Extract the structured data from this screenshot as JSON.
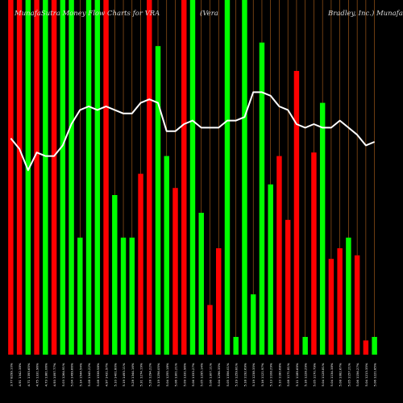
{
  "title": {
    "left": "MunafaSutra  Money Flow  Charts for VRA",
    "right": "(Vera",
    "far_right": "Bradley,  Inc.) MunafaSutra"
  },
  "colors": {
    "background": "#000000",
    "up": "#00ff00",
    "down": "#ff0000",
    "grid": "#b5651d",
    "line": "#ffffff",
    "label": "#ffffff"
  },
  "chart_data": {
    "type": "bar",
    "ylim": [
      0,
      100
    ],
    "categories": [
      "3.77  8299.10%",
      "4.91  1342.38%",
      "4.71  1393.65%",
      "4.75  1331.96%",
      "4.73  1381.06%",
      "4.93  1097.77%",
      "5.03  1264.91%",
      "5.04  1499.66%",
      "5.14  1544.54%",
      "5.08  1345.22%",
      "5.08  1538.58%",
      "4.97  1431.97%",
      "5.10  1401.80%",
      "5.19  1493.11%",
      "5.28  1344.16%",
      "5.31  1274.19%",
      "5.28  1294.22%",
      "5.19  1256.05%",
      "5.04  1255.18%",
      "5.06  1301.21%",
      "5.09  1331.96%",
      "5.06  1333.27%",
      "5.05  1295.14%",
      "5.06  1307.11%",
      "5.04  1296.35%",
      "5.05  1356.01%",
      "5.19  1259.81%",
      "5.18  1192.69%",
      "5.19  1238.35%",
      "5.16  1121.97%",
      "5.13  1108.29%",
      "5.10  1180.68%",
      "5.08  1171.81%",
      "5.11  1189.69%",
      "5.16  1228.29%",
      "5.05  1170.79%",
      "5.04  1128.81%",
      "5.04  1134.38%",
      "5.08  1082.67%",
      "5.05  1157.21%",
      "5.06  1156.27%",
      "5.04  1213.35%",
      "5.06  1221.85%"
    ],
    "values": [
      100,
      100,
      100,
      100,
      100,
      100,
      100,
      100,
      33,
      100,
      100,
      100,
      45,
      33,
      33,
      51,
      100,
      87,
      56,
      47,
      100,
      100,
      40,
      14,
      30,
      100,
      5,
      100,
      17,
      88,
      48,
      56,
      38,
      80,
      5,
      57,
      71,
      27,
      30,
      33,
      28,
      4,
      5
    ],
    "directions": [
      "down",
      "down",
      "up",
      "down",
      "up",
      "down",
      "up",
      "up",
      "up",
      "up",
      "up",
      "down",
      "up",
      "up",
      "up",
      "down",
      "down",
      "up",
      "up",
      "down",
      "down",
      "up",
      "up",
      "down",
      "down",
      "up",
      "up",
      "up",
      "up",
      "up",
      "up",
      "down",
      "down",
      "down",
      "up",
      "down",
      "up",
      "down",
      "down",
      "up",
      "down",
      "down",
      "up"
    ],
    "line": [
      61,
      58,
      52,
      57,
      56,
      56,
      59,
      65,
      69,
      70,
      69,
      70,
      69,
      68,
      68,
      71,
      72,
      71,
      63,
      63,
      65,
      66,
      64,
      64,
      64,
      66,
      66,
      67,
      74,
      74,
      73,
      70,
      69,
      65,
      64,
      65,
      64,
      64,
      66,
      64,
      62,
      59,
      60
    ]
  }
}
